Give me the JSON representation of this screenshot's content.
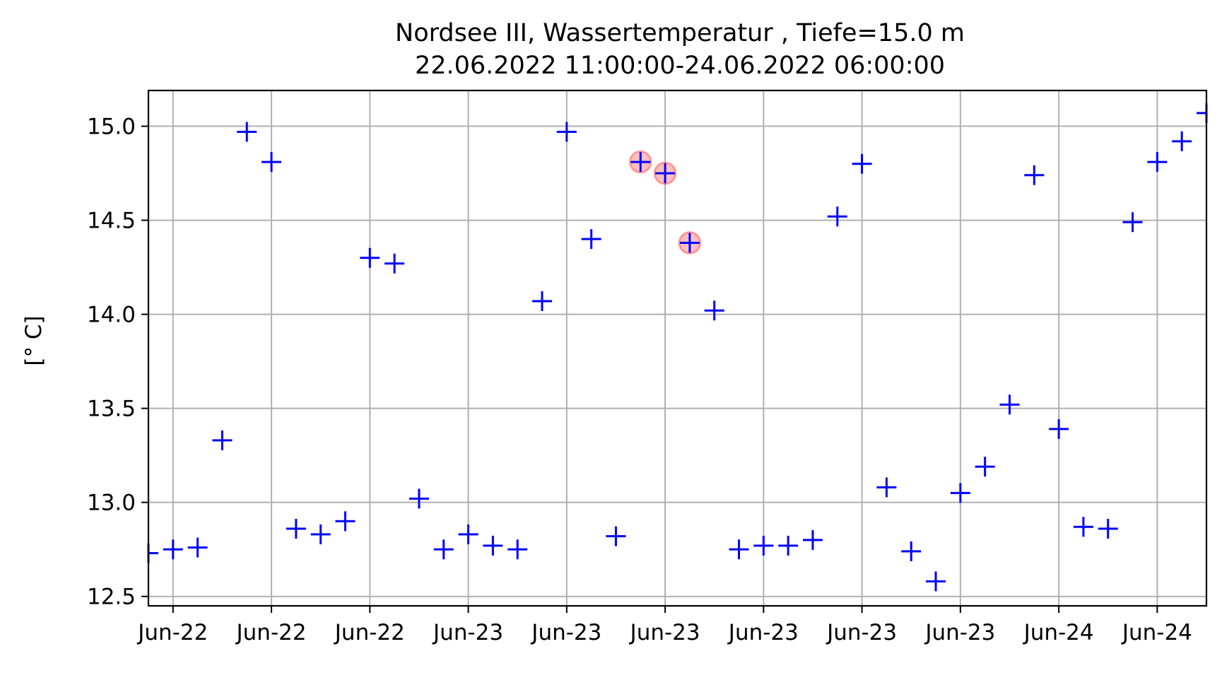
{
  "chart_data": {
    "type": "scatter",
    "title": "Nordsee III, Wassertemperatur , Tiefe=15.0 m",
    "subtitle": "22.06.2022 11:00:00-24.06.2022 06:00:00",
    "xlabel": "",
    "ylabel": "[° C]",
    "ylim": [
      12.45,
      15.19
    ],
    "yticks": [
      12.5,
      13.0,
      13.5,
      14.0,
      14.5,
      15.0
    ],
    "ytick_labels": [
      "12.5",
      "13.0",
      "13.5",
      "14.0",
      "14.5",
      "15.0"
    ],
    "xlim": [
      "2022-06-22 11:00",
      "2022-06-24 06:00"
    ],
    "xticks": [
      "2022-06-22 12:00",
      "2022-06-22 16:00",
      "2022-06-22 20:00",
      "2022-06-23 00:00",
      "2022-06-23 04:00",
      "2022-06-23 08:00",
      "2022-06-23 12:00",
      "2022-06-23 16:00",
      "2022-06-23 20:00",
      "2022-06-24 00:00",
      "2022-06-24 04:00"
    ],
    "xtick_labels": [
      "Jun-22",
      "Jun-22",
      "Jun-22",
      "Jun-23",
      "Jun-23",
      "Jun-23",
      "Jun-23",
      "Jun-23",
      "Jun-23",
      "Jun-24",
      "Jun-24"
    ],
    "grid": true,
    "marker": "+",
    "marker_color": "#0000ff",
    "highlight_color": "#ff0000",
    "x": [
      "2022-06-22 11:00",
      "2022-06-22 12:00",
      "2022-06-22 13:00",
      "2022-06-22 14:00",
      "2022-06-22 15:00",
      "2022-06-22 16:00",
      "2022-06-22 17:00",
      "2022-06-22 18:00",
      "2022-06-22 19:00",
      "2022-06-22 20:00",
      "2022-06-22 21:00",
      "2022-06-22 22:00",
      "2022-06-22 23:00",
      "2022-06-23 00:00",
      "2022-06-23 01:00",
      "2022-06-23 02:00",
      "2022-06-23 03:00",
      "2022-06-23 04:00",
      "2022-06-23 05:00",
      "2022-06-23 06:00",
      "2022-06-23 07:00",
      "2022-06-23 08:00",
      "2022-06-23 09:00",
      "2022-06-23 10:00",
      "2022-06-23 11:00",
      "2022-06-23 12:00",
      "2022-06-23 13:00",
      "2022-06-23 14:00",
      "2022-06-23 15:00",
      "2022-06-23 16:00",
      "2022-06-23 17:00",
      "2022-06-23 18:00",
      "2022-06-23 19:00",
      "2022-06-23 20:00",
      "2022-06-23 21:00",
      "2022-06-23 22:00",
      "2022-06-23 23:00",
      "2022-06-24 00:00",
      "2022-06-24 01:00",
      "2022-06-24 02:00",
      "2022-06-24 03:00",
      "2022-06-24 04:00",
      "2022-06-24 05:00",
      "2022-06-24 06:00"
    ],
    "y": [
      12.73,
      12.75,
      12.76,
      13.33,
      14.97,
      14.81,
      12.86,
      12.83,
      12.9,
      14.3,
      14.27,
      13.02,
      12.75,
      12.83,
      12.77,
      12.75,
      14.07,
      14.97,
      14.4,
      12.82,
      14.81,
      14.75,
      14.38,
      14.02,
      12.75,
      12.77,
      12.77,
      12.8,
      14.52,
      14.8,
      13.08,
      12.74,
      12.58,
      13.05,
      13.19,
      13.52,
      14.74,
      13.39,
      12.87,
      12.86,
      14.49,
      14.81,
      14.92,
      15.07
    ],
    "highlighted": [
      "2022-06-23 07:00",
      "2022-06-23 08:00",
      "2022-06-23 09:00"
    ]
  }
}
